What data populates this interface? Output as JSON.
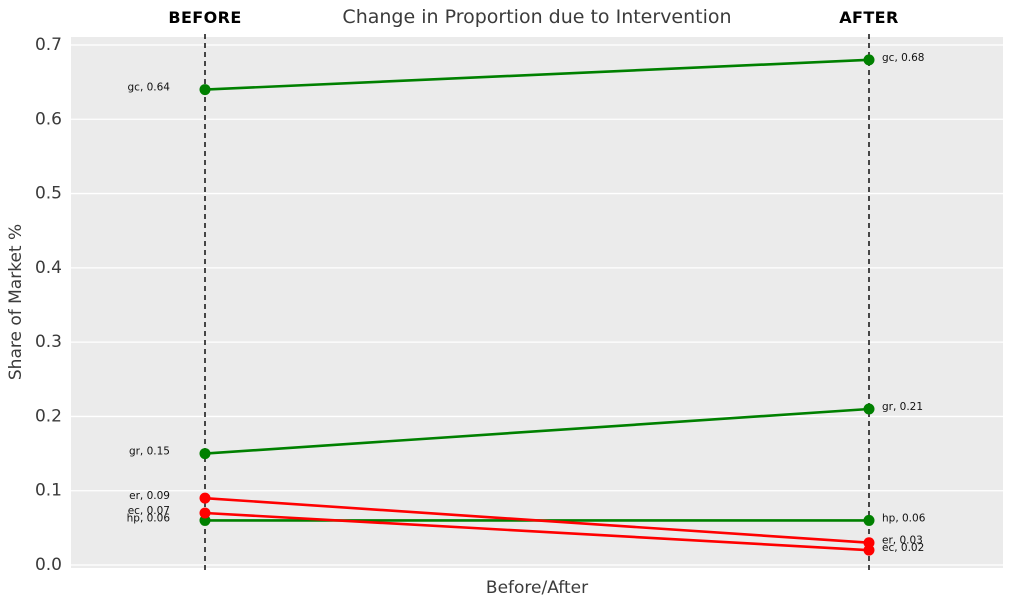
{
  "chart_data": {
    "type": "line",
    "subtype": "slope-chart",
    "title": "Change in Proportion due to Intervention",
    "xlabel": "Before/After",
    "ylabel": "Share of Market %",
    "columns": [
      "BEFORE",
      "AFTER"
    ],
    "ylim": [
      0.0,
      0.7
    ],
    "yticks": [
      0.0,
      0.1,
      0.2,
      0.3,
      0.4,
      0.5,
      0.6,
      0.7
    ],
    "grid": "horizontal white gridlines on gray panel",
    "legend": "none",
    "point_label_format": "{name}, {value}",
    "series": [
      {
        "name": "gc",
        "color": "#008000",
        "values": {
          "before": 0.64,
          "after": 0.68
        }
      },
      {
        "name": "gr",
        "color": "#008000",
        "values": {
          "before": 0.15,
          "after": 0.21
        }
      },
      {
        "name": "hp",
        "color": "#008000",
        "values": {
          "before": 0.06,
          "after": 0.06
        }
      },
      {
        "name": "er",
        "color": "#ff0000",
        "values": {
          "before": 0.09,
          "after": 0.03
        }
      },
      {
        "name": "ec",
        "color": "#ff0000",
        "values": {
          "before": 0.07,
          "after": 0.02
        }
      }
    ]
  },
  "colors": {
    "panel_bg": "#ebebeb",
    "grid": "#ffffff",
    "increase": "#008000",
    "decrease": "#ff0000",
    "axis_text": "#3b3b3b",
    "point_label_text": "#111111",
    "marker_line": "#000000"
  }
}
